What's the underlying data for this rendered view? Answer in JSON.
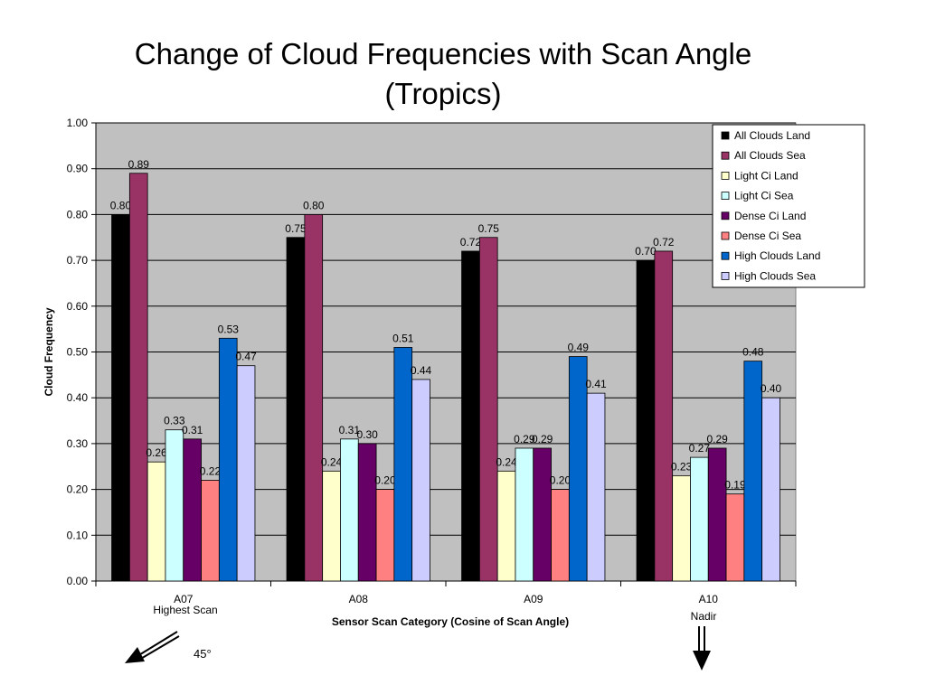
{
  "title_line1": "Change of Cloud Frequencies with Scan Angle",
  "title_line2": "(Tropics)",
  "annotations": {
    "a07_sub": "Highest Scan",
    "a10_sub": "Nadir",
    "angle_label": "45°"
  },
  "chart_data": {
    "type": "bar",
    "xlabel": "Sensor Scan Category (Cosine of Scan Angle)",
    "ylabel": "Cloud Frequency",
    "ylim": [
      0,
      1.0
    ],
    "yticks": [
      "0.00",
      "0.10",
      "0.20",
      "0.30",
      "0.40",
      "0.50",
      "0.60",
      "0.70",
      "0.80",
      "0.90",
      "1.00"
    ],
    "grid": true,
    "legend": "top-right",
    "categories": [
      "A07",
      "A08",
      "A09",
      "A10"
    ],
    "series": [
      {
        "name": "All Clouds Land",
        "color": "#000000",
        "values": [
          0.8,
          0.75,
          0.72,
          0.7
        ],
        "labels": [
          "0.80",
          "0.75",
          "0.72",
          "0.70"
        ]
      },
      {
        "name": "All Clouds Sea",
        "color": "#993366",
        "values": [
          0.89,
          0.8,
          0.75,
          0.72
        ],
        "labels": [
          "0.89",
          "0.80",
          "0.75",
          "0.72"
        ]
      },
      {
        "name": "Light Ci Land",
        "color": "#ffffcc",
        "values": [
          0.26,
          0.24,
          0.24,
          0.23
        ],
        "labels": [
          "0.26",
          "0.24",
          "0.24",
          "0.23"
        ]
      },
      {
        "name": "Light Ci Sea",
        "color": "#ccffff",
        "values": [
          0.33,
          0.31,
          0.29,
          0.27
        ],
        "labels": [
          "0.33",
          "0.31",
          "0.29",
          "0.27"
        ]
      },
      {
        "name": "Dense Ci Land",
        "color": "#660066",
        "values": [
          0.31,
          0.3,
          0.29,
          0.29
        ],
        "labels": [
          "0.31",
          "0.30",
          "0.29",
          "0.29"
        ]
      },
      {
        "name": "Dense Ci Sea",
        "color": "#ff8080",
        "values": [
          0.22,
          0.2,
          0.2,
          0.19
        ],
        "labels": [
          "0.22",
          "0.20",
          "0.20",
          "0.19"
        ]
      },
      {
        "name": "High Clouds Land",
        "color": "#0066cc",
        "values": [
          0.53,
          0.51,
          0.49,
          0.48
        ],
        "labels": [
          "0.53",
          "0.51",
          "0.49",
          "0.48"
        ]
      },
      {
        "name": "High Clouds Sea",
        "color": "#ccccff",
        "values": [
          0.47,
          0.44,
          0.41,
          0.4
        ],
        "labels": [
          "0.47",
          "0.44",
          "0.41",
          "0.40"
        ]
      }
    ]
  }
}
